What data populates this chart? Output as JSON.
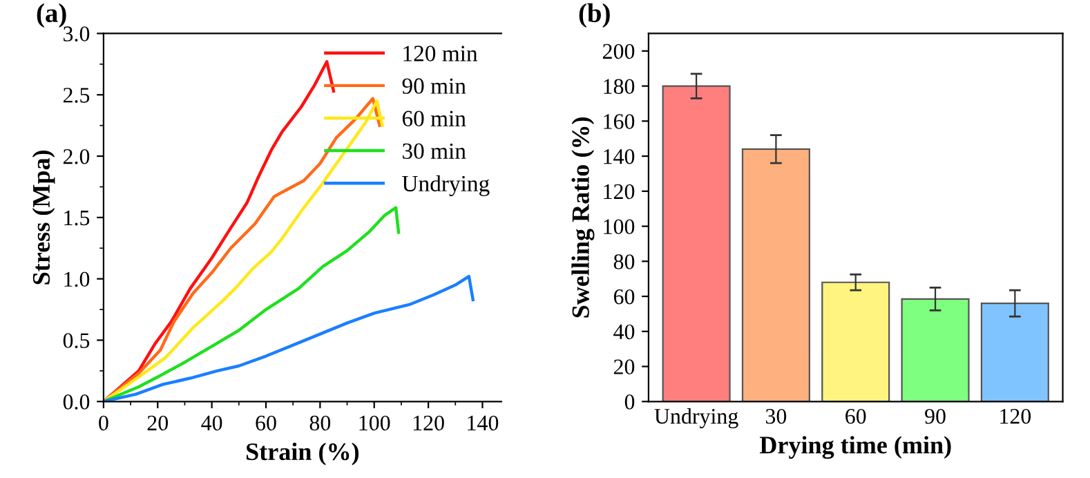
{
  "chart_data": [
    {
      "type": "line",
      "title": "(a)",
      "xlabel": "Strain (%)",
      "ylabel": "Stress (Mpa)",
      "xlim": [
        0,
        147
      ],
      "xticks": [
        0,
        20,
        40,
        60,
        80,
        100,
        120,
        140
      ],
      "ylim": [
        0,
        3.0
      ],
      "yticks": [
        {
          "value": 0,
          "label": "0.0"
        },
        0.5,
        {
          "value": 1,
          "label": "1.0"
        },
        1.5,
        {
          "value": 2,
          "label": "2.0"
        },
        2.5,
        {
          "value": 3,
          "label": "3.0"
        }
      ],
      "legend": "top right",
      "grid": false,
      "marker": "none",
      "line_style": "solid",
      "series": [
        {
          "name": "120 min",
          "color": "#ff1010",
          "x": [
            0,
            13,
            19,
            25,
            32,
            40,
            46,
            53,
            57,
            62,
            66,
            73,
            78,
            82.5,
            85
          ],
          "values": [
            0,
            0.25,
            0.47,
            0.65,
            0.92,
            1.17,
            1.38,
            1.62,
            1.82,
            2.05,
            2.2,
            2.4,
            2.58,
            2.77,
            2.53
          ]
        },
        {
          "name": "90 min",
          "color": "#ff6a1a",
          "x": [
            0,
            13,
            21,
            26,
            33,
            40,
            47,
            56,
            63,
            68,
            74,
            80,
            86,
            93,
            99.5,
            102
          ],
          "values": [
            0,
            0.23,
            0.42,
            0.65,
            0.88,
            1.05,
            1.25,
            1.45,
            1.67,
            1.73,
            1.8,
            1.94,
            2.15,
            2.3,
            2.47,
            2.25
          ]
        },
        {
          "name": "60 min",
          "color": "#ffe81a",
          "x": [
            0,
            13,
            23,
            33,
            44,
            49,
            55,
            62,
            66,
            73,
            80,
            88,
            97,
            101,
            103
          ],
          "values": [
            0,
            0.2,
            0.36,
            0.6,
            0.82,
            0.93,
            1.08,
            1.22,
            1.33,
            1.55,
            1.75,
            2.0,
            2.28,
            2.45,
            2.25
          ]
        },
        {
          "name": "30 min",
          "color": "#1ee01e",
          "x": [
            0,
            13,
            20,
            30,
            40,
            50,
            60,
            72,
            81,
            90,
            98,
            104,
            108,
            109
          ],
          "values": [
            0,
            0.12,
            0.2,
            0.32,
            0.45,
            0.58,
            0.75,
            0.92,
            1.1,
            1.23,
            1.38,
            1.52,
            1.58,
            1.38
          ]
        },
        {
          "name": "Undrying",
          "color": "#1a7fff",
          "x": [
            0,
            12,
            22,
            32,
            42,
            50,
            60,
            70,
            80,
            90,
            100,
            113,
            122,
            130,
            135,
            136.5
          ],
          "values": [
            0,
            0.06,
            0.14,
            0.19,
            0.25,
            0.29,
            0.37,
            0.46,
            0.55,
            0.64,
            0.72,
            0.79,
            0.87,
            0.95,
            1.02,
            0.83
          ]
        }
      ]
    },
    {
      "type": "bar",
      "title": "(b)",
      "xlabel": "Drying time (min)",
      "ylabel": "Swelling Ratio (%)",
      "categories": [
        "Undrying",
        "30",
        "60",
        "90",
        "120"
      ],
      "values": [
        180,
        144,
        68,
        58.5,
        56
      ],
      "errors": [
        7,
        8,
        4.5,
        6.5,
        7.5
      ],
      "colors": [
        "#ff7f7f",
        "#ffb07f",
        "#fff47f",
        "#7fff7f",
        "#7fc4ff"
      ],
      "ylim": [
        0,
        210
      ],
      "yticks": [
        0,
        20,
        40,
        60,
        80,
        100,
        120,
        140,
        160,
        180,
        200
      ],
      "grid": false,
      "legend": false
    }
  ]
}
